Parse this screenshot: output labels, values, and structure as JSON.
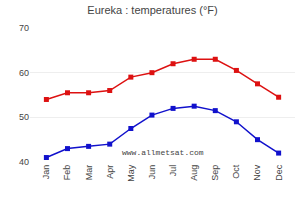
{
  "chart_data": {
    "type": "line",
    "title": "Eureka : temperatures (°F)",
    "categories": [
      "Jan",
      "Feb",
      "Mar",
      "Apr",
      "May",
      "Jun",
      "Jul",
      "Aug",
      "Sep",
      "Oct",
      "Nov",
      "Dec"
    ],
    "series": [
      {
        "color": "#dd1111",
        "marker": "square",
        "values": [
          54,
          55.5,
          55.5,
          56,
          59,
          60,
          62,
          63,
          63,
          60.5,
          57.5,
          54.5
        ]
      },
      {
        "color": "#1111cc",
        "marker": "square",
        "values": [
          41,
          43,
          43.5,
          44,
          47.5,
          50.5,
          52,
          52.5,
          51.5,
          49,
          45,
          42
        ]
      }
    ],
    "ylim": [
      40,
      70
    ],
    "yticks": [
      40,
      50,
      60,
      70
    ],
    "grid": true,
    "annotations": [
      "www.allmetsat.com"
    ]
  }
}
